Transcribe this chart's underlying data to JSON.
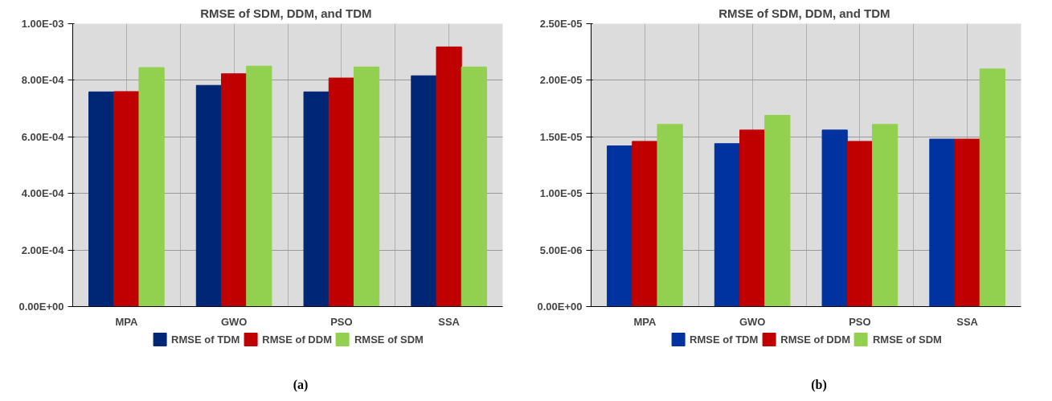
{
  "chart_data": [
    {
      "type": "bar",
      "title": "RMSE of  SDM, DDM, and TDM",
      "categories": [
        "MPA",
        "GWO",
        "PSO",
        "SSA"
      ],
      "series": [
        {
          "name": "RMSE of TDM",
          "color": "#002776",
          "values": [
            0.000759,
            0.000782,
            0.000759,
            0.000816
          ]
        },
        {
          "name": "RMSE of DDM",
          "color": "#c00000",
          "values": [
            0.00076,
            0.000823,
            0.000808,
            0.000918
          ]
        },
        {
          "name": "RMSE of SDM",
          "color": "#92d050",
          "values": [
            0.000845,
            0.00085,
            0.000847,
            0.000847
          ]
        }
      ],
      "ylim": [
        0,
        0.001
      ],
      "yticks": [
        {
          "value": 0,
          "label": "0.00E+00"
        },
        {
          "value": 0.0002,
          "label": "2.00E-04"
        },
        {
          "value": 0.0004,
          "label": "4.00E-04"
        },
        {
          "value": 0.0006,
          "label": "6.00E-04"
        },
        {
          "value": 0.0008,
          "label": "8.00E-04"
        },
        {
          "value": 0.001,
          "label": "1.00E-03"
        }
      ],
      "grid": true,
      "legend": "bottom",
      "annotations": [
        "(a)"
      ]
    },
    {
      "type": "bar",
      "title": "RMSE of  SDM, DDM, and TDM",
      "categories": [
        "MPA",
        "GWO",
        "PSO",
        "SSA"
      ],
      "series": [
        {
          "name": "RMSE of TDM",
          "color": "#0033a0",
          "values": [
            1.42e-05,
            1.44e-05,
            1.56e-05,
            1.48e-05
          ]
        },
        {
          "name": "RMSE of DDM",
          "color": "#c00000",
          "values": [
            1.46e-05,
            1.56e-05,
            1.46e-05,
            1.48e-05
          ]
        },
        {
          "name": "RMSE of SDM",
          "color": "#92d050",
          "values": [
            1.61e-05,
            1.69e-05,
            1.61e-05,
            2.1e-05
          ]
        }
      ],
      "ylim": [
        0,
        2.5e-05
      ],
      "yticks": [
        {
          "value": 0,
          "label": "0.00E+00"
        },
        {
          "value": 5e-06,
          "label": "5.00E-06"
        },
        {
          "value": 1e-05,
          "label": "1.00E-05"
        },
        {
          "value": 1.5e-05,
          "label": "1.50E-05"
        },
        {
          "value": 2e-05,
          "label": "2.00E-05"
        },
        {
          "value": 2.5e-05,
          "label": "2.50E-05"
        }
      ],
      "grid": true,
      "legend": "bottom",
      "annotations": [
        "(b)"
      ]
    }
  ]
}
